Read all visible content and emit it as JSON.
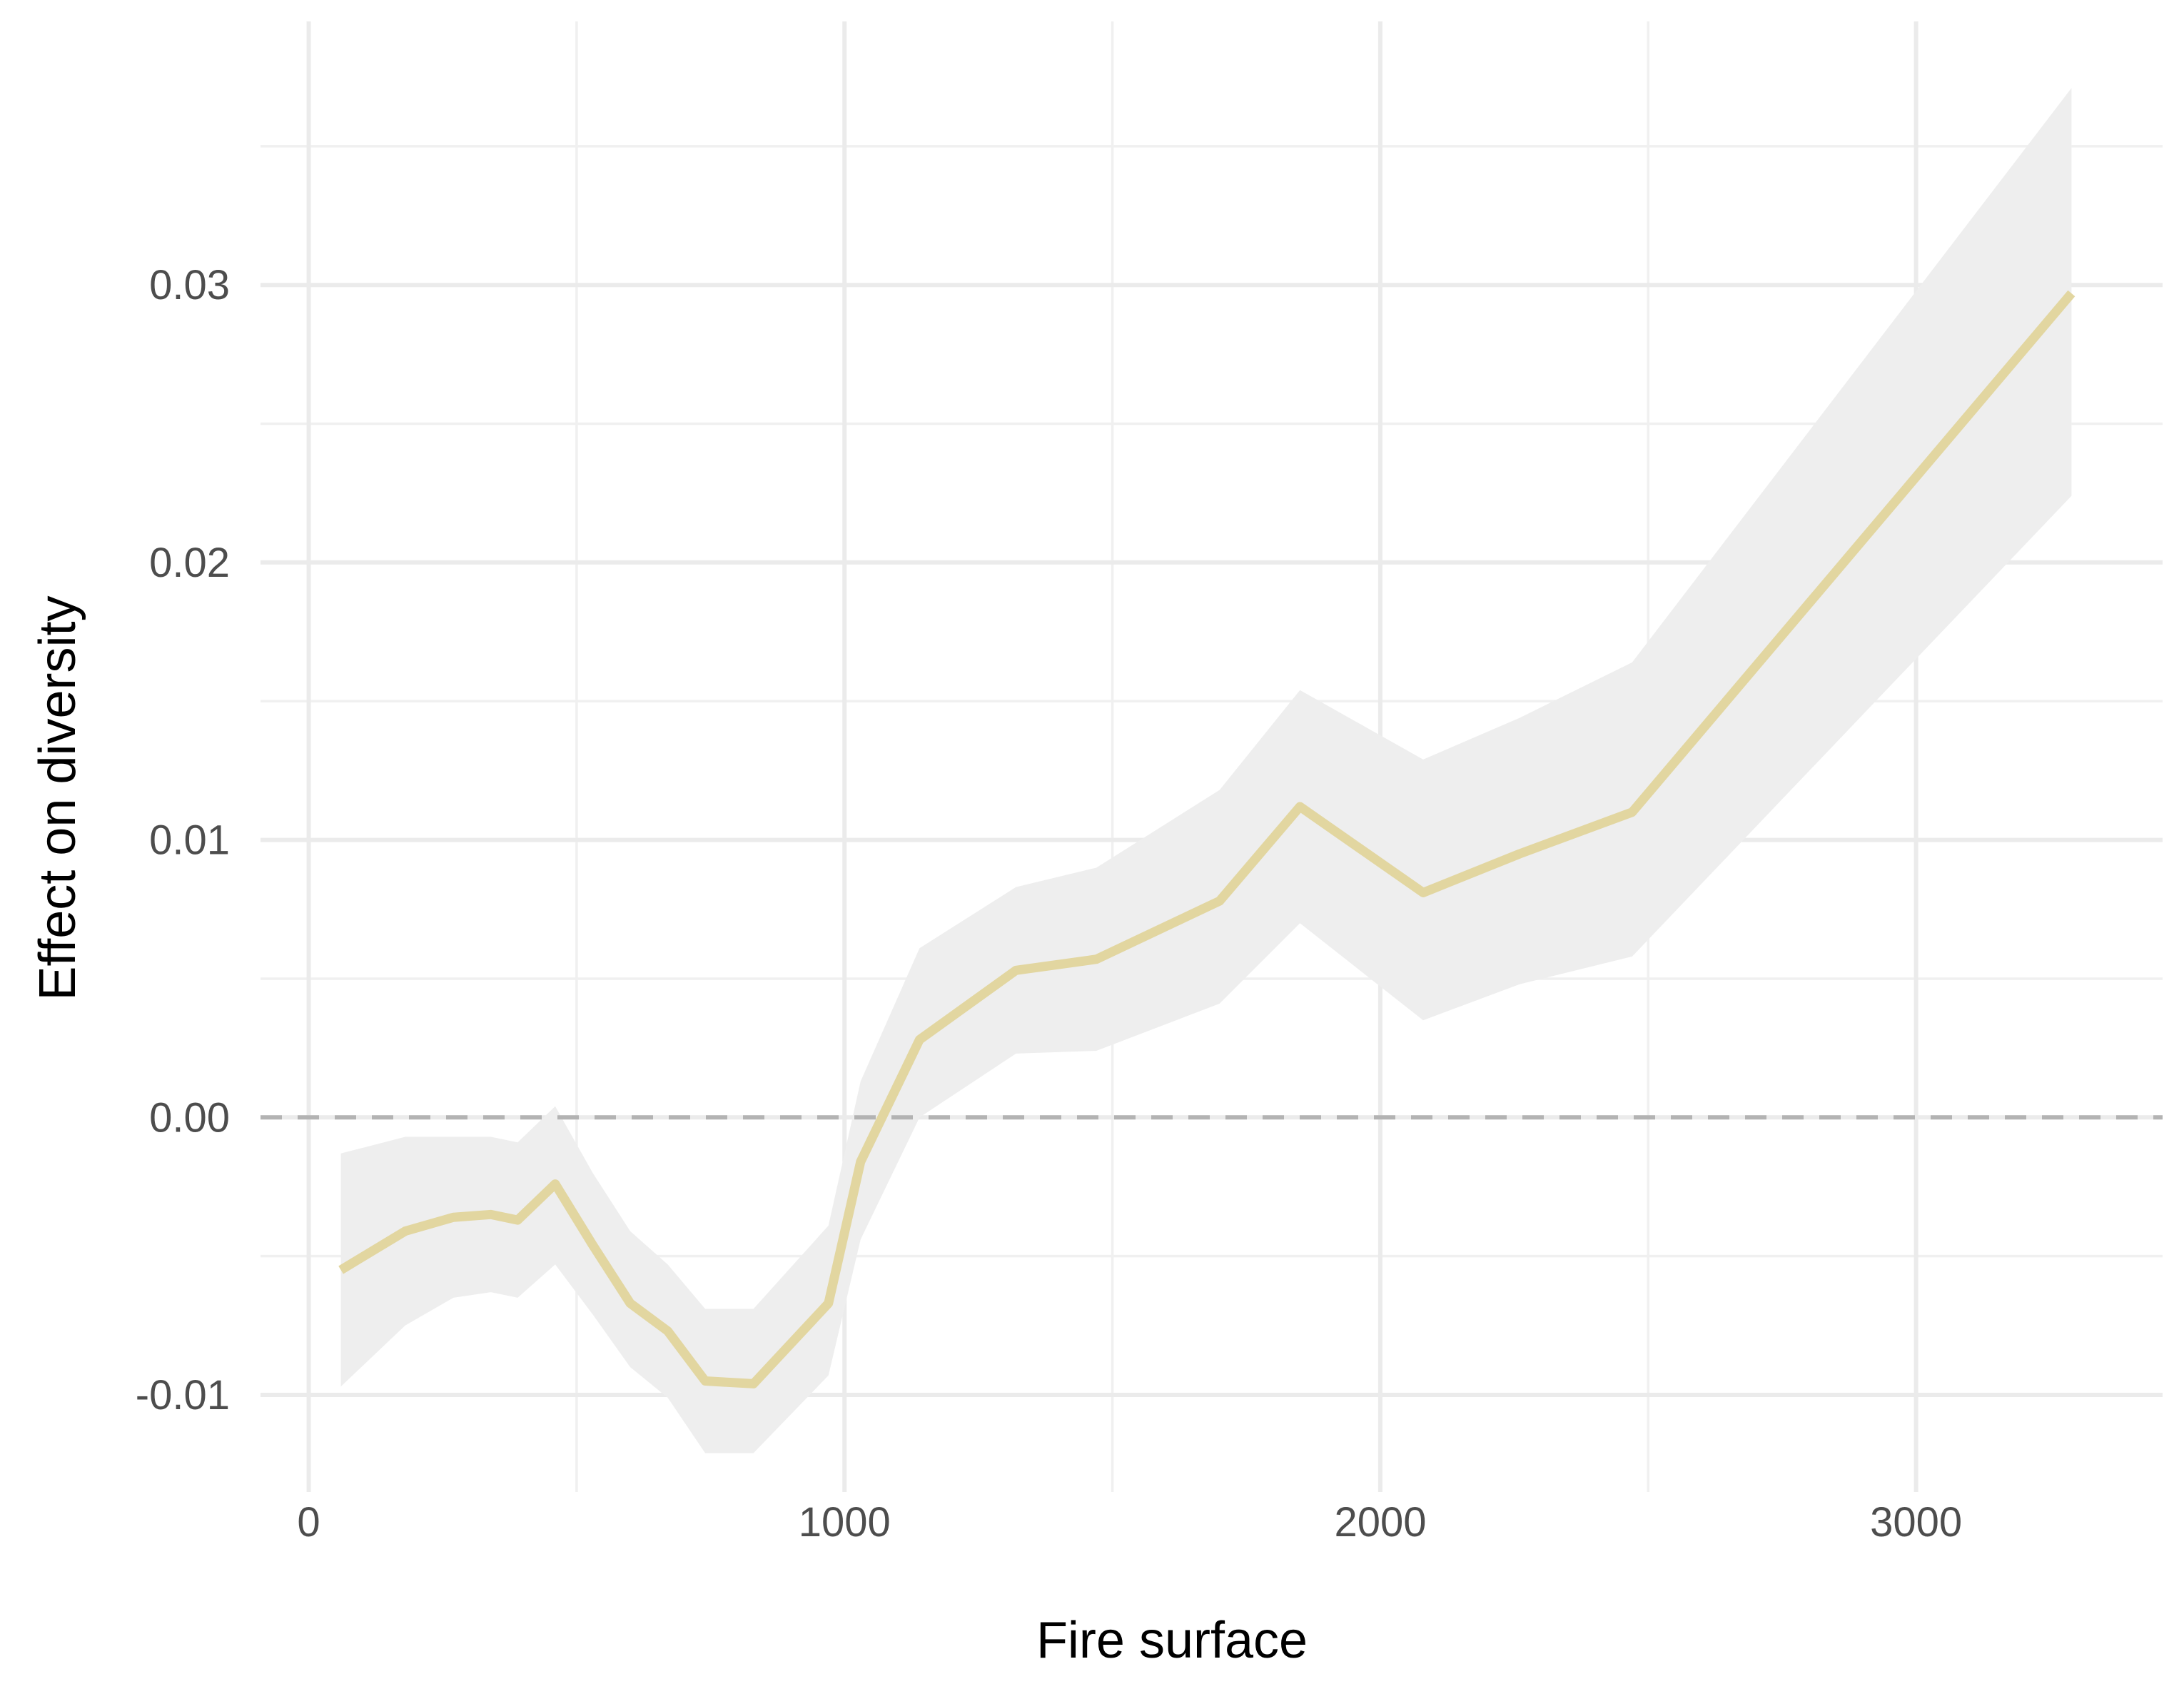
{
  "chart_data": {
    "type": "line",
    "title": "",
    "xlabel": "Fire surface",
    "ylabel": "Effect on diversity",
    "xlim": [
      -90,
      3460
    ],
    "ylim": [
      -0.0135,
      0.0395
    ],
    "x_ticks": [
      0,
      1000,
      2000,
      3000
    ],
    "x_tick_labels": [
      "0",
      "1000",
      "2000",
      "3000"
    ],
    "y_ticks": [
      -0.01,
      0.0,
      0.01,
      0.02,
      0.03
    ],
    "y_tick_labels": [
      "-0.01",
      "0.00",
      "0.01",
      "0.02",
      "0.03"
    ],
    "grid": true,
    "reference_line": {
      "y": 0.0,
      "style": "dashed",
      "color": "#b3b3b3"
    },
    "colors": {
      "line": "#e2d6a0",
      "ribbon": "#eeeeee"
    },
    "series": [
      {
        "x": [
          60,
          180,
          270,
          340,
          390,
          460,
          530,
          600,
          670,
          740,
          830,
          970,
          1030,
          1140,
          1320,
          1470,
          1700,
          1850,
          2080,
          2260,
          2470,
          3290
        ],
        "y": [
          -0.0055,
          -0.0041,
          -0.0036,
          -0.0035,
          -0.0037,
          -0.0024,
          -0.0046,
          -0.0067,
          -0.0077,
          -0.0095,
          -0.0096,
          -0.0067,
          -0.0016,
          0.0028,
          0.0053,
          0.0057,
          0.0078,
          0.0112,
          0.0081,
          0.0095,
          0.011,
          0.0297
        ],
        "lower": [
          -0.0097,
          -0.0075,
          -0.0065,
          -0.0063,
          -0.0065,
          -0.0053,
          -0.0071,
          -0.009,
          -0.0101,
          -0.0121,
          -0.0121,
          -0.0093,
          -0.0044,
          0.0,
          0.0023,
          0.0024,
          0.0041,
          0.007,
          0.0035,
          0.0048,
          0.0058,
          0.0224
        ],
        "upper": [
          -0.0013,
          -0.0007,
          -0.0007,
          -0.0007,
          -0.0009,
          0.0004,
          -0.002,
          -0.0041,
          -0.0053,
          -0.0069,
          -0.0069,
          -0.0039,
          0.0013,
          0.0061,
          0.0083,
          0.009,
          0.0118,
          0.0154,
          0.0129,
          0.0144,
          0.0164,
          0.0371
        ]
      }
    ]
  }
}
